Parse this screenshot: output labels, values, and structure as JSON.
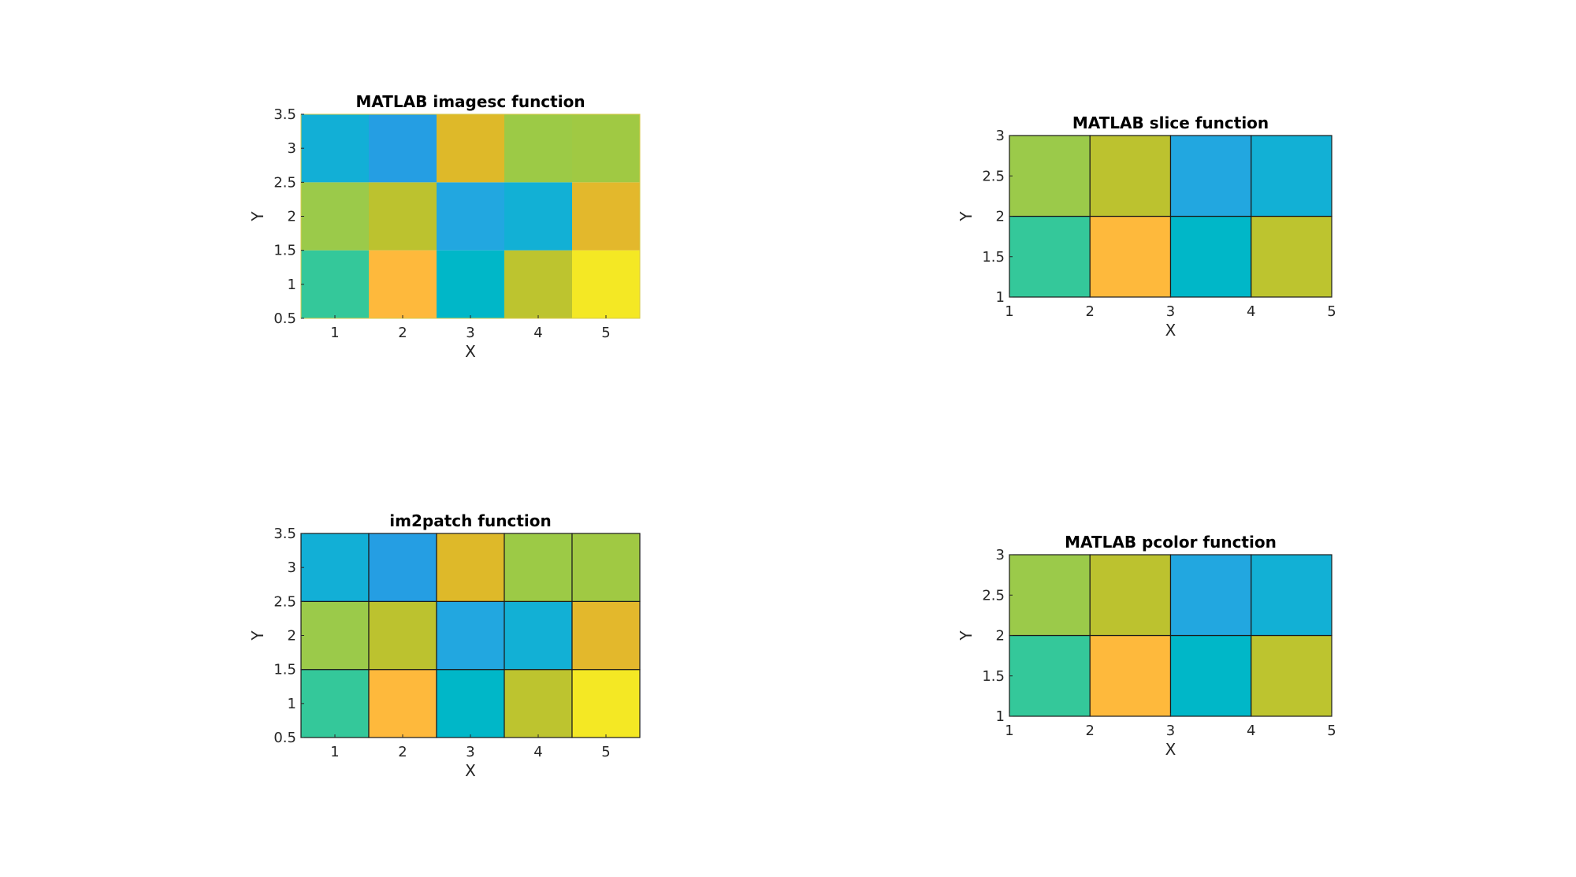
{
  "figure": {
    "background": "#ffffff"
  },
  "chart_data": [
    {
      "type": "heatmap",
      "title": "MATLAB imagesc function",
      "xlabel": "X",
      "ylabel": "Y",
      "xlim": [
        0.5,
        5.5
      ],
      "ylim": [
        0.5,
        3.5
      ],
      "xticks": [
        "1",
        "2",
        "3",
        "4",
        "5"
      ],
      "yticks": [
        "0.5",
        "1",
        "1.5",
        "2",
        "2.5",
        "3",
        "3.5"
      ],
      "cell_edges": false,
      "x": [
        1,
        2,
        3,
        4,
        5
      ],
      "y": [
        1,
        2,
        3
      ],
      "colors": [
        [
          "#34c89a",
          "#feb93c",
          "#00b7c8",
          "#bdc42f",
          "#f4e824"
        ],
        [
          "#9bca4a",
          "#bcc22f",
          "#22a7e0",
          "#12b0d5",
          "#e3b82c"
        ],
        [
          "#12afd6",
          "#259ee3",
          "#deb929",
          "#9cca46",
          "#a0c943"
        ]
      ]
    },
    {
      "type": "heatmap",
      "title": "MATLAB slice function",
      "xlabel": "X",
      "ylabel": "Y",
      "xlim": [
        1,
        5
      ],
      "ylim": [
        1,
        3
      ],
      "xticks": [
        "1",
        "2",
        "3",
        "4",
        "5"
      ],
      "yticks": [
        "1",
        "1.5",
        "2",
        "2.5",
        "3"
      ],
      "cell_edges": true,
      "x_edges": [
        1,
        2,
        3,
        4,
        5
      ],
      "y_edges": [
        1,
        2,
        3
      ],
      "colors": [
        [
          "#34c89a",
          "#feb93c",
          "#00b7c8",
          "#bdc42f"
        ],
        [
          "#9bca4a",
          "#bcc22f",
          "#22a7e0",
          "#12b0d5"
        ]
      ]
    },
    {
      "type": "heatmap",
      "title": "im2patch function",
      "xlabel": "X",
      "ylabel": "Y",
      "xlim": [
        0.5,
        5.5
      ],
      "ylim": [
        0.5,
        3.5
      ],
      "xticks": [
        "1",
        "2",
        "3",
        "4",
        "5"
      ],
      "yticks": [
        "0.5",
        "1",
        "1.5",
        "2",
        "2.5",
        "3",
        "3.5"
      ],
      "cell_edges": true,
      "x": [
        1,
        2,
        3,
        4,
        5
      ],
      "y": [
        1,
        2,
        3
      ],
      "colors": [
        [
          "#34c89a",
          "#feb93c",
          "#00b7c8",
          "#bdc42f",
          "#f4e824"
        ],
        [
          "#9bca4a",
          "#bcc22f",
          "#22a7e0",
          "#12b0d5",
          "#e3b82c"
        ],
        [
          "#12afd6",
          "#259ee3",
          "#deb929",
          "#9cca46",
          "#a0c943"
        ]
      ]
    },
    {
      "type": "heatmap",
      "title": "MATLAB pcolor function",
      "xlabel": "X",
      "ylabel": "Y",
      "xlim": [
        1,
        5
      ],
      "ylim": [
        1,
        3
      ],
      "xticks": [
        "1",
        "2",
        "3",
        "4",
        "5"
      ],
      "yticks": [
        "1",
        "1.5",
        "2",
        "2.5",
        "3"
      ],
      "cell_edges": true,
      "x_edges": [
        1,
        2,
        3,
        4,
        5
      ],
      "y_edges": [
        1,
        2,
        3
      ],
      "colors": [
        [
          "#34c89a",
          "#feb93c",
          "#00b7c8",
          "#bdc42f"
        ],
        [
          "#9bca4a",
          "#bcc22f",
          "#22a7e0",
          "#12b0d5"
        ]
      ]
    }
  ]
}
